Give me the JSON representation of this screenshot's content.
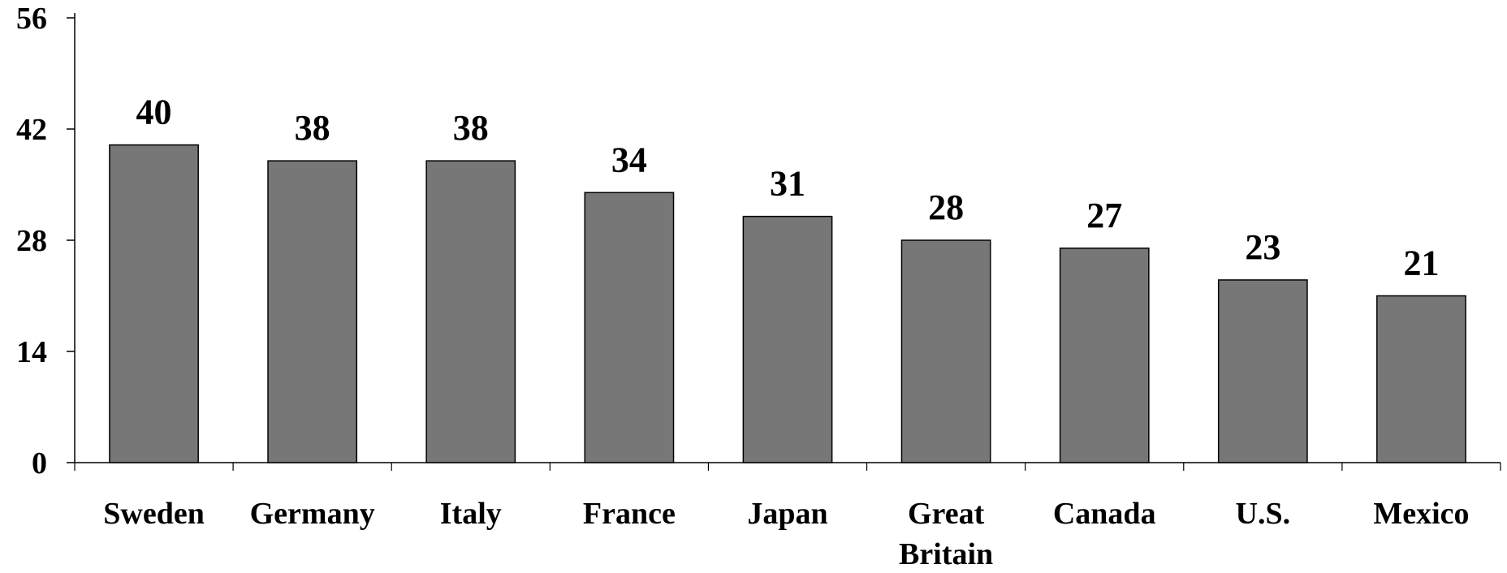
{
  "chart_data": {
    "type": "bar",
    "title": "",
    "xlabel": "",
    "ylabel": "",
    "categories": [
      [
        "Sweden"
      ],
      [
        "Germany"
      ],
      [
        "Italy"
      ],
      [
        "France"
      ],
      [
        "Japan"
      ],
      [
        "Great",
        "Britain"
      ],
      [
        "Canada"
      ],
      [
        "U.S."
      ],
      [
        "Mexico"
      ]
    ],
    "values": [
      40,
      38,
      38,
      34,
      31,
      28,
      27,
      23,
      21
    ],
    "data_labels": [
      "40",
      "38",
      "38",
      "34",
      "31",
      "28",
      "27",
      "23",
      "21"
    ],
    "ylim": [
      0,
      56
    ],
    "yticks": [
      0,
      14,
      28,
      42,
      56
    ],
    "grid": false,
    "legend": "none",
    "bar_color": "#777777",
    "bar_edge_color": "#000000"
  }
}
